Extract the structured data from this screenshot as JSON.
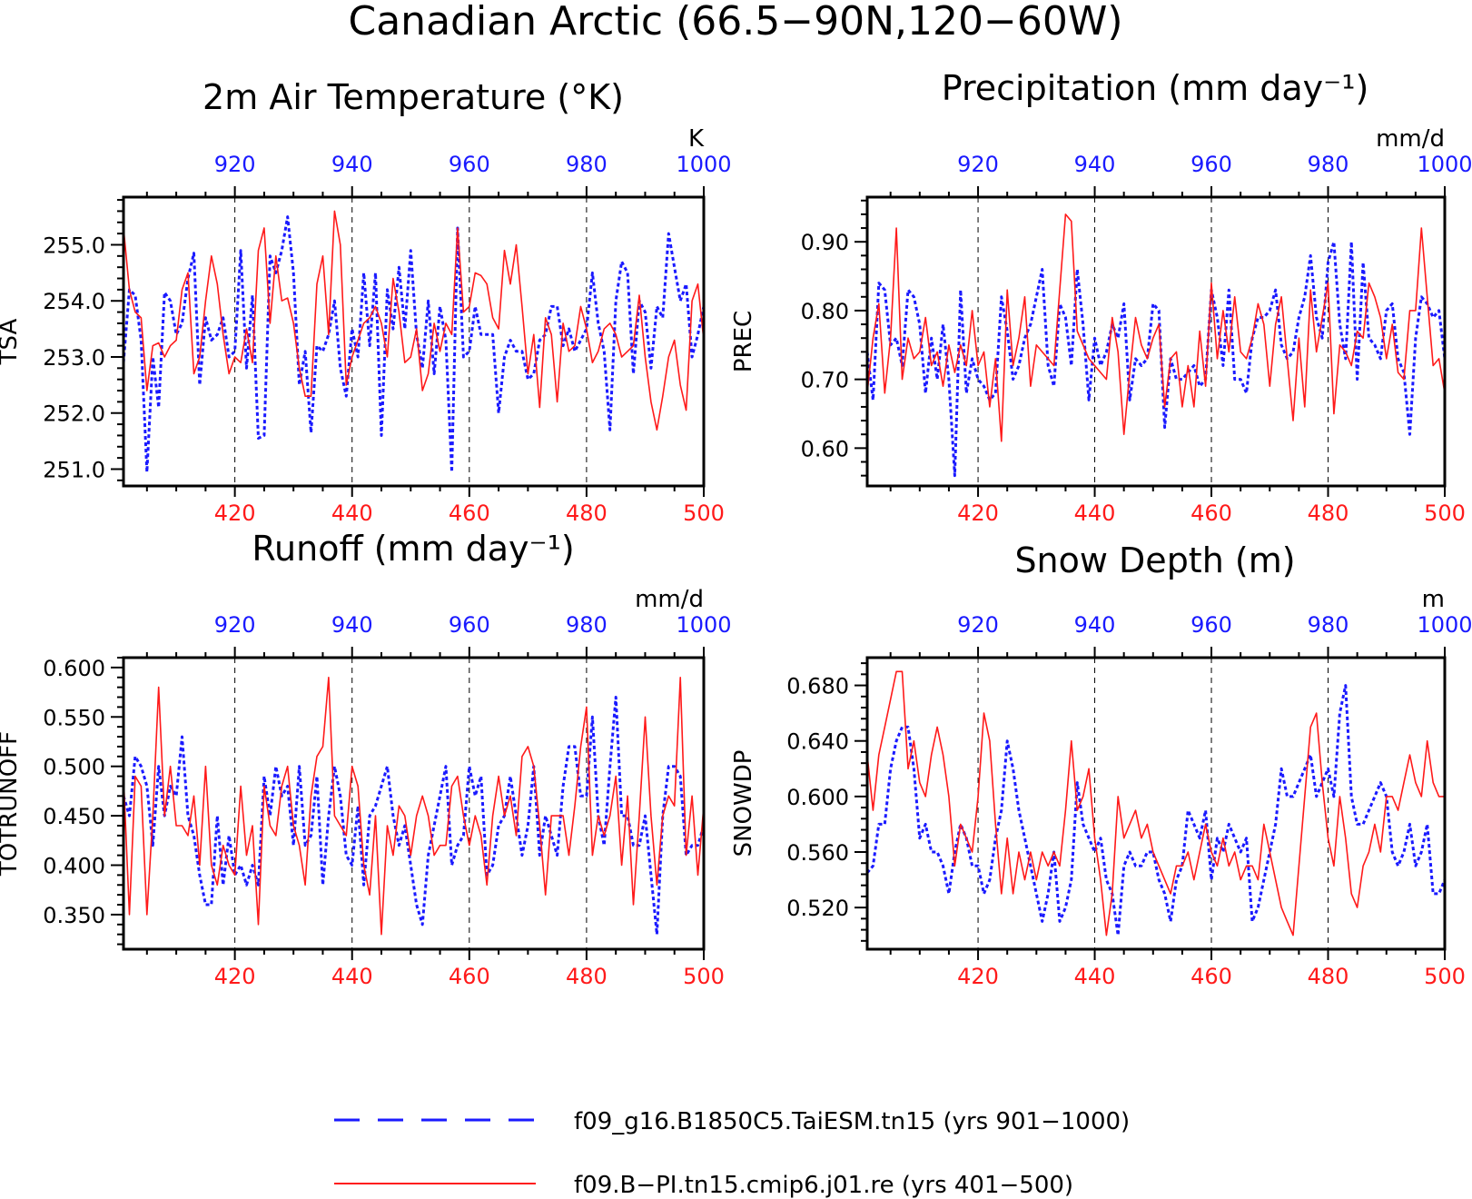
{
  "page_title": "Canadian Arctic (66.5−90N,120−60W)",
  "colors": {
    "exp_a": "#1a1aff",
    "exp_b": "#ff1a1a",
    "axis": "#000000",
    "grid": "#000000"
  },
  "legend": {
    "items": [
      {
        "label": "f09_g16.B1850C5.TaiESM.tn15 (yrs 901−1000)",
        "color": "#1a1aff",
        "style": "dashed"
      },
      {
        "label": "f09.B−PI.tn15.cmip6.j01.re (yrs 401−500)",
        "color": "#ff1a1a",
        "style": "solid"
      }
    ]
  },
  "chart_data": [
    {
      "type": "line",
      "title": "2m Air Temperature (°K)",
      "ylabel": "TSA",
      "unit": "K",
      "ylim": [
        250.7,
        255.85
      ],
      "yticks": [
        251.0,
        252.0,
        253.0,
        254.0,
        255.0
      ],
      "ytick_labels": [
        "251.0",
        "252.0",
        "253.0",
        "254.0",
        "255.0"
      ],
      "xlim_bottom": [
        401,
        500
      ],
      "xticks_bottom": [
        420,
        440,
        460,
        480,
        500
      ],
      "xlim_top": [
        901,
        1000
      ],
      "xticks_top": [
        920,
        940,
        960,
        980,
        1000
      ],
      "series": [
        {
          "name": "f09_g16.B1850C5.TaiESM.tn15 (yrs 901−1000)",
          "axis": "top",
          "color": "#1a1aff",
          "style": "dashed",
          "x_start": 901,
          "values": [
            252.9,
            254.2,
            254.1,
            253.3,
            250.95,
            253.0,
            252.1,
            254.15,
            254.0,
            253.4,
            253.6,
            254.4,
            254.85,
            252.5,
            253.7,
            253.3,
            253.4,
            253.7,
            253.0,
            253.1,
            254.9,
            252.8,
            254.1,
            251.55,
            251.6,
            254.8,
            254.5,
            254.9,
            255.5,
            254.5,
            252.5,
            253.1,
            251.65,
            253.2,
            253.1,
            253.4,
            254.0,
            252.8,
            252.3,
            253.5,
            253.0,
            254.5,
            253.2,
            254.5,
            251.6,
            254.2,
            253.5,
            254.6,
            253.5,
            254.9,
            253.4,
            252.8,
            254.0,
            252.7,
            253.9,
            253.3,
            250.95,
            255.3,
            253.0,
            253.1,
            253.9,
            253.4,
            253.4,
            253.4,
            252.0,
            253.0,
            253.3,
            253.1,
            253.1,
            252.6,
            252.7,
            253.3,
            253.4,
            253.9,
            253.9,
            253.2,
            253.5,
            253.1,
            253.3,
            253.5,
            254.5,
            253.6,
            253.1,
            251.7,
            254.0,
            254.7,
            254.5,
            252.7,
            254.0,
            253.8,
            252.8,
            253.9,
            253.7,
            255.2,
            254.6,
            254.0,
            254.3,
            253.0,
            253.4,
            253.9
          ]
        },
        {
          "name": "f09.B−PI.tn15.cmip6.j01.re (yrs 401−500)",
          "axis": "bottom",
          "color": "#ff1a1a",
          "style": "solid",
          "x_start": 401,
          "values": [
            255.3,
            254.2,
            253.8,
            253.7,
            252.4,
            253.2,
            253.25,
            253.0,
            253.2,
            253.3,
            254.2,
            254.5,
            252.7,
            253.0,
            254.0,
            254.8,
            254.3,
            253.4,
            252.7,
            253.0,
            252.9,
            253.5,
            252.9,
            254.9,
            255.3,
            253.6,
            254.8,
            254.0,
            254.05,
            253.6,
            252.8,
            252.3,
            252.3,
            254.3,
            254.8,
            253.4,
            255.6,
            255.0,
            252.5,
            253.0,
            253.3,
            253.6,
            253.7,
            253.9,
            253.6,
            253.0,
            254.4,
            253.8,
            252.9,
            253.0,
            253.5,
            252.4,
            252.7,
            253.6,
            253.1,
            253.6,
            253.4,
            255.3,
            253.8,
            253.9,
            254.5,
            254.45,
            254.3,
            253.7,
            253.5,
            254.9,
            254.3,
            255.0,
            253.9,
            252.7,
            253.4,
            252.1,
            253.7,
            253.4,
            252.2,
            253.6,
            253.1,
            253.2,
            253.9,
            253.5,
            252.9,
            253.1,
            253.5,
            253.6,
            253.4,
            253.0,
            253.1,
            253.2,
            254.1,
            253.0,
            252.2,
            251.7,
            252.3,
            253.0,
            253.3,
            252.5,
            252.05,
            254.0,
            254.3,
            253.3
          ]
        }
      ]
    },
    {
      "type": "line",
      "title": "Precipitation (mm day⁻¹)",
      "ylabel": "PREC",
      "unit": "mm/d",
      "ylim": [
        0.545,
        0.965
      ],
      "yticks": [
        0.6,
        0.7,
        0.8,
        0.9
      ],
      "ytick_labels": [
        "0.60",
        "0.70",
        "0.80",
        "0.90"
      ],
      "xlim_bottom": [
        401,
        500
      ],
      "xticks_bottom": [
        420,
        440,
        460,
        480,
        500
      ],
      "xlim_top": [
        901,
        1000
      ],
      "xticks_top": [
        920,
        940,
        960,
        980,
        1000
      ],
      "series": [
        {
          "name": "f09_g16.B1850C5.TaiESM.tn15 (yrs 901−1000)",
          "axis": "top",
          "color": "#1a1aff",
          "style": "dashed",
          "x_start": 901,
          "values": [
            0.74,
            0.67,
            0.84,
            0.83,
            0.75,
            0.76,
            0.72,
            0.83,
            0.82,
            0.78,
            0.68,
            0.76,
            0.7,
            0.78,
            0.7,
            0.56,
            0.83,
            0.68,
            0.73,
            0.7,
            0.69,
            0.67,
            0.68,
            0.82,
            0.77,
            0.7,
            0.72,
            0.76,
            0.78,
            0.82,
            0.86,
            0.72,
            0.69,
            0.81,
            0.79,
            0.72,
            0.86,
            0.78,
            0.67,
            0.76,
            0.72,
            0.74,
            0.78,
            0.76,
            0.81,
            0.67,
            0.73,
            0.72,
            0.73,
            0.81,
            0.8,
            0.63,
            0.73,
            0.7,
            0.7,
            0.71,
            0.72,
            0.69,
            0.7,
            0.83,
            0.79,
            0.72,
            0.83,
            0.7,
            0.7,
            0.68,
            0.76,
            0.79,
            0.79,
            0.8,
            0.83,
            0.75,
            0.73,
            0.74,
            0.79,
            0.82,
            0.88,
            0.79,
            0.76,
            0.87,
            0.9,
            0.78,
            0.73,
            0.9,
            0.7,
            0.87,
            0.76,
            0.75,
            0.73,
            0.8,
            0.81,
            0.73,
            0.71,
            0.62,
            0.76,
            0.82,
            0.81,
            0.79,
            0.8,
            0.73
          ]
        },
        {
          "name": "f09.B−PI.tn15.cmip6.j01.re (yrs 401−500)",
          "axis": "bottom",
          "color": "#ff1a1a",
          "style": "solid",
          "x_start": 401,
          "values": [
            0.68,
            0.76,
            0.81,
            0.68,
            0.76,
            0.92,
            0.7,
            0.76,
            0.73,
            0.74,
            0.79,
            0.72,
            0.74,
            0.69,
            0.75,
            0.71,
            0.75,
            0.72,
            0.8,
            0.72,
            0.74,
            0.66,
            0.73,
            0.61,
            0.83,
            0.72,
            0.76,
            0.82,
            0.69,
            0.75,
            0.74,
            0.73,
            0.72,
            0.83,
            0.94,
            0.93,
            0.77,
            0.75,
            0.73,
            0.72,
            0.71,
            0.7,
            0.79,
            0.74,
            0.62,
            0.71,
            0.79,
            0.75,
            0.73,
            0.76,
            0.78,
            0.66,
            0.73,
            0.74,
            0.66,
            0.72,
            0.66,
            0.77,
            0.69,
            0.84,
            0.73,
            0.8,
            0.74,
            0.82,
            0.74,
            0.73,
            0.76,
            0.81,
            0.78,
            0.69,
            0.78,
            0.82,
            0.73,
            0.64,
            0.76,
            0.66,
            0.83,
            0.74,
            0.79,
            0.84,
            0.65,
            0.75,
            0.74,
            0.72,
            0.77,
            0.76,
            0.84,
            0.82,
            0.79,
            0.73,
            0.78,
            0.71,
            0.7,
            0.8,
            0.8,
            0.92,
            0.82,
            0.72,
            0.73,
            0.68
          ]
        }
      ]
    },
    {
      "type": "line",
      "title": "Runoff (mm day⁻¹)",
      "ylabel": "TOTRUNOFF",
      "unit": "mm/d",
      "ylim": [
        0.315,
        0.61
      ],
      "yticks": [
        0.35,
        0.4,
        0.45,
        0.5,
        0.55,
        0.6
      ],
      "ytick_labels": [
        "0.350",
        "0.400",
        "0.450",
        "0.500",
        "0.550",
        "0.600"
      ],
      "xlim_bottom": [
        401,
        500
      ],
      "xticks_bottom": [
        420,
        440,
        460,
        480,
        500
      ],
      "xlim_top": [
        901,
        1000
      ],
      "xticks_top": [
        920,
        940,
        960,
        980,
        1000
      ],
      "series": [
        {
          "name": "f09_g16.B1850C5.TaiESM.tn15 (yrs 901−1000)",
          "axis": "top",
          "color": "#1a1aff",
          "style": "dashed",
          "x_start": 901,
          "values": [
            0.47,
            0.45,
            0.51,
            0.5,
            0.48,
            0.42,
            0.5,
            0.45,
            0.48,
            0.47,
            0.53,
            0.45,
            0.43,
            0.39,
            0.36,
            0.36,
            0.45,
            0.38,
            0.43,
            0.39,
            0.4,
            0.38,
            0.4,
            0.38,
            0.49,
            0.45,
            0.5,
            0.47,
            0.48,
            0.42,
            0.5,
            0.42,
            0.43,
            0.49,
            0.38,
            0.45,
            0.5,
            0.47,
            0.41,
            0.4,
            0.46,
            0.38,
            0.45,
            0.46,
            0.48,
            0.5,
            0.45,
            0.42,
            0.44,
            0.4,
            0.36,
            0.34,
            0.41,
            0.44,
            0.47,
            0.5,
            0.4,
            0.42,
            0.43,
            0.5,
            0.47,
            0.49,
            0.39,
            0.4,
            0.44,
            0.45,
            0.49,
            0.45,
            0.41,
            0.44,
            0.5,
            0.41,
            0.45,
            0.43,
            0.41,
            0.48,
            0.52,
            0.52,
            0.47,
            0.47,
            0.55,
            0.45,
            0.42,
            0.5,
            0.57,
            0.45,
            0.45,
            0.42,
            0.42,
            0.45,
            0.39,
            0.33,
            0.45,
            0.5,
            0.5,
            0.49,
            0.41,
            0.42,
            0.42,
            0.44
          ]
        },
        {
          "name": "f09.B−PI.tn15.cmip6.j01.re (yrs 401−500)",
          "axis": "bottom",
          "color": "#ff1a1a",
          "style": "solid",
          "x_start": 401,
          "values": [
            0.49,
            0.35,
            0.49,
            0.48,
            0.35,
            0.45,
            0.58,
            0.45,
            0.5,
            0.44,
            0.44,
            0.43,
            0.47,
            0.4,
            0.5,
            0.4,
            0.38,
            0.42,
            0.4,
            0.39,
            0.48,
            0.41,
            0.44,
            0.34,
            0.48,
            0.44,
            0.43,
            0.48,
            0.5,
            0.44,
            0.42,
            0.38,
            0.47,
            0.51,
            0.52,
            0.59,
            0.45,
            0.44,
            0.43,
            0.5,
            0.48,
            0.4,
            0.37,
            0.45,
            0.33,
            0.44,
            0.41,
            0.46,
            0.45,
            0.41,
            0.45,
            0.47,
            0.45,
            0.41,
            0.42,
            0.42,
            0.48,
            0.49,
            0.45,
            0.42,
            0.45,
            0.43,
            0.38,
            0.45,
            0.49,
            0.45,
            0.47,
            0.43,
            0.51,
            0.52,
            0.5,
            0.44,
            0.37,
            0.45,
            0.45,
            0.45,
            0.41,
            0.46,
            0.52,
            0.56,
            0.41,
            0.45,
            0.43,
            0.45,
            0.49,
            0.4,
            0.47,
            0.36,
            0.45,
            0.55,
            0.45,
            0.38,
            0.45,
            0.47,
            0.46,
            0.59,
            0.41,
            0.47,
            0.39,
            0.46
          ]
        }
      ]
    },
    {
      "type": "line",
      "title": "Snow Depth (m)",
      "ylabel": "SNOWDP",
      "unit": "m",
      "ylim": [
        0.49,
        0.7
      ],
      "yticks": [
        0.52,
        0.56,
        0.6,
        0.64,
        0.68
      ],
      "ytick_labels": [
        "0.520",
        "0.560",
        "0.600",
        "0.640",
        "0.680"
      ],
      "xlim_bottom": [
        401,
        500
      ],
      "xticks_bottom": [
        420,
        440,
        460,
        480,
        500
      ],
      "xlim_top": [
        901,
        1000
      ],
      "xticks_top": [
        920,
        940,
        960,
        980,
        1000
      ],
      "series": [
        {
          "name": "f09_g16.B1850C5.TaiESM.tn15 (yrs 901−1000)",
          "axis": "top",
          "color": "#1a1aff",
          "style": "dashed",
          "x_start": 901,
          "values": [
            0.545,
            0.55,
            0.58,
            0.58,
            0.62,
            0.64,
            0.65,
            0.65,
            0.62,
            0.57,
            0.58,
            0.56,
            0.56,
            0.55,
            0.53,
            0.56,
            0.58,
            0.57,
            0.55,
            0.55,
            0.53,
            0.54,
            0.57,
            0.59,
            0.64,
            0.62,
            0.59,
            0.57,
            0.55,
            0.53,
            0.51,
            0.53,
            0.56,
            0.51,
            0.52,
            0.54,
            0.61,
            0.58,
            0.57,
            0.56,
            0.57,
            0.54,
            0.53,
            0.5,
            0.55,
            0.56,
            0.55,
            0.55,
            0.56,
            0.56,
            0.54,
            0.53,
            0.51,
            0.54,
            0.55,
            0.59,
            0.58,
            0.57,
            0.59,
            0.54,
            0.57,
            0.56,
            0.58,
            0.57,
            0.56,
            0.57,
            0.51,
            0.52,
            0.54,
            0.56,
            0.58,
            0.62,
            0.6,
            0.6,
            0.61,
            0.62,
            0.63,
            0.6,
            0.61,
            0.62,
            0.6,
            0.66,
            0.68,
            0.6,
            0.58,
            0.58,
            0.59,
            0.6,
            0.61,
            0.6,
            0.56,
            0.55,
            0.56,
            0.58,
            0.55,
            0.56,
            0.58,
            0.53,
            0.53,
            0.54
          ]
        },
        {
          "name": "f09.B−PI.tn15.cmip6.j01.re (yrs 401−500)",
          "axis": "bottom",
          "color": "#ff1a1a",
          "style": "solid",
          "x_start": 401,
          "values": [
            0.63,
            0.59,
            0.63,
            0.65,
            0.67,
            0.69,
            0.69,
            0.62,
            0.64,
            0.61,
            0.6,
            0.63,
            0.65,
            0.63,
            0.6,
            0.55,
            0.58,
            0.57,
            0.56,
            0.6,
            0.66,
            0.64,
            0.58,
            0.53,
            0.57,
            0.53,
            0.56,
            0.54,
            0.56,
            0.54,
            0.56,
            0.55,
            0.56,
            0.55,
            0.59,
            0.64,
            0.59,
            0.6,
            0.62,
            0.57,
            0.54,
            0.5,
            0.53,
            0.6,
            0.57,
            0.58,
            0.59,
            0.57,
            0.58,
            0.56,
            0.55,
            0.54,
            0.53,
            0.55,
            0.55,
            0.56,
            0.54,
            0.56,
            0.58,
            0.56,
            0.55,
            0.57,
            0.55,
            0.56,
            0.54,
            0.55,
            0.55,
            0.54,
            0.58,
            0.56,
            0.54,
            0.52,
            0.51,
            0.5,
            0.55,
            0.6,
            0.65,
            0.66,
            0.61,
            0.57,
            0.55,
            0.6,
            0.57,
            0.53,
            0.52,
            0.55,
            0.56,
            0.58,
            0.56,
            0.6,
            0.6,
            0.59,
            0.61,
            0.63,
            0.61,
            0.6,
            0.64,
            0.61,
            0.6,
            0.6
          ]
        }
      ]
    }
  ]
}
